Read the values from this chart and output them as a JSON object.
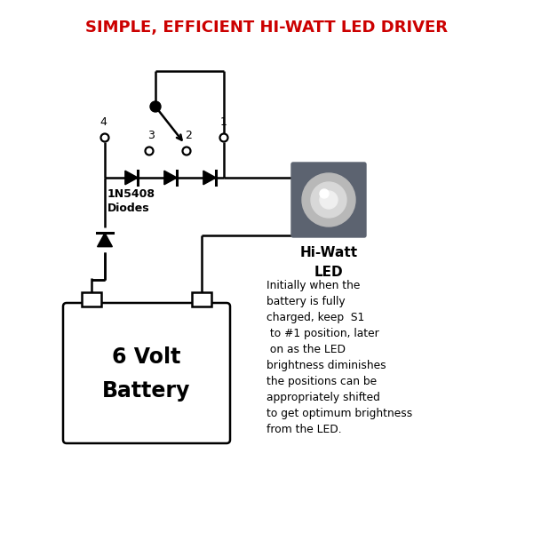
{
  "title": "SIMPLE, EFFICIENT HI-WATT LED DRIVER",
  "title_color": "#cc0000",
  "bg_color": "#ffffff",
  "line_color": "#000000",
  "description_text": "Initially when the\nbattery is fully\ncharged, keep  S1\n to #1 position, later\n on as the LED\nbrightness diminishes\nthe positions can be\nappropriately shifted\nto get optimum brightness\nfrom the LED.",
  "diode_label": "1N5408\nDiodes",
  "battery_label1": "6 Volt",
  "battery_label2": "Battery",
  "led_label1": "Hi-Watt",
  "led_label2": "LED",
  "gray_color": "#5c6370",
  "light_gray": "#b8b8b8",
  "mid_gray": "#d8d8d8"
}
